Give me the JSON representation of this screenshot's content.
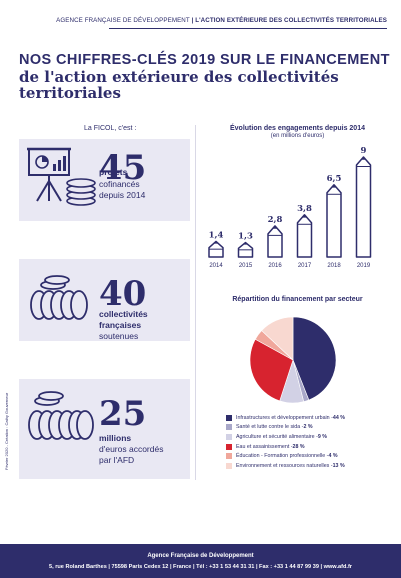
{
  "header": {
    "org": "AGENCE FRANÇAISE DE DÉVELOPPEMENT",
    "separator": " | ",
    "section": "L'ACTION EXTÉRIEURE DES COLLECTIVITÉS TERRITORIALES"
  },
  "headline": {
    "line1": "NOS CHIFFRES-CLÉS 2019 SUR LE FINANCEMENT",
    "line2": "de l'action extérieure des collectivités",
    "line3": "territoriales"
  },
  "left_caption": "La FICOL, c'est :",
  "kpis": [
    {
      "number": "45",
      "bold": "projets",
      "line_a": "cofinancés",
      "line_b": "depuis 2014",
      "icon": "presentation-board-icon"
    },
    {
      "number": "40",
      "bold_a": "collectivités",
      "bold_b": "françaises",
      "line": "soutenues",
      "icon": "coin-stack-icon"
    },
    {
      "number": "25",
      "bold": "millions",
      "line_a": "d'euros accordés",
      "line_b": "par l'AFD",
      "icon": "coin-pile-icon"
    }
  ],
  "credit": "Février 2020 - Création : Cathy Gouverneur",
  "chart_data": [
    {
      "type": "bar",
      "title": "Évolution des engagements depuis 2014",
      "subtitle": "(en millions d'euros)",
      "categories": [
        "2014",
        "2015",
        "2016",
        "2017",
        "2018",
        "2019"
      ],
      "values": [
        1.4,
        1.3,
        2.8,
        3.8,
        6.5,
        9
      ],
      "value_labels": [
        "1,4",
        "1,3",
        "2,8",
        "3,8",
        "6,5",
        "9"
      ],
      "bar_style": "pencil",
      "ylim": [
        0,
        9
      ]
    },
    {
      "type": "pie",
      "title": "Répartition du financement par secteur",
      "legend_position": "bottom",
      "slices": [
        {
          "label": "Infrastructures et développement urbain",
          "pct_label": "44 %",
          "value": 44,
          "color": "#2e2d6b"
        },
        {
          "label": "Santé et lutte contre le sida",
          "pct_label": "2 %",
          "value": 2,
          "color": "#a9a8c9"
        },
        {
          "label": "Agriculture et sécurité alimentaire",
          "pct_label": "9 %",
          "value": 9,
          "color": "#d2d1e5"
        },
        {
          "label": "Eau et assainissement",
          "pct_label": "28 %",
          "value": 28,
          "color": "#d7232f"
        },
        {
          "label": "Éducation - Formation professionnelle",
          "pct_label": "4 %",
          "value": 4,
          "color": "#f0a79b"
        },
        {
          "label": "Environnement et ressources naturelles",
          "pct_label": "13 %",
          "value": 13,
          "color": "#f8d8d0"
        }
      ]
    }
  ],
  "footer": {
    "name": "Agence Française de Développement",
    "address": "5, rue Roland Barthes | 75598 Paris Cedex 12 | France | Tél : +33 1 53 44 31 31 | Fax : +33 1 44 87 99 39 | www.afd.fr"
  },
  "colors": {
    "navy": "#2e2d6b",
    "box_bg": "#e9e8f3",
    "footer_bg": "#2e2d6b"
  }
}
